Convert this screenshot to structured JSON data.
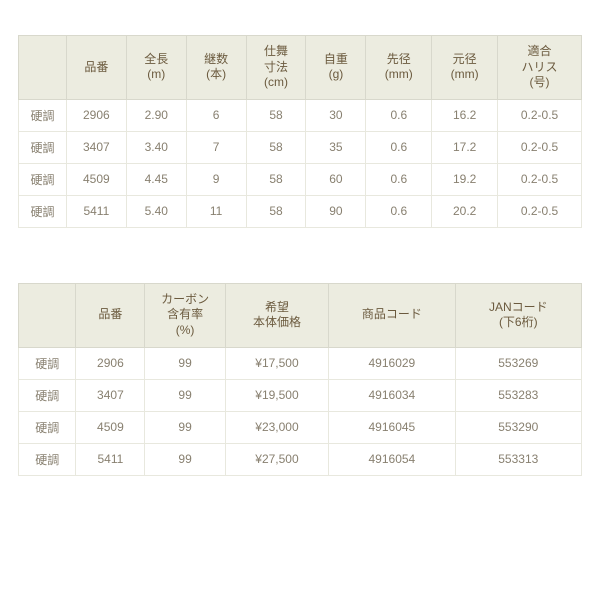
{
  "colors": {
    "header_bg": "#ecece0",
    "header_text": "#6b5a3e",
    "cell_text": "#888070",
    "border": "#d8d8cc",
    "row_border": "#e8e8de",
    "page_bg": "#ffffff"
  },
  "typography": {
    "font_size_pt": 12,
    "header_line_height": 1.3
  },
  "table1": {
    "columns": [
      "",
      "品番",
      "全長\n(m)",
      "継数\n(本)",
      "仕舞\n寸法\n(cm)",
      "自重\n(g)",
      "先径\n(mm)",
      "元径\n(mm)",
      "適合\nハリス\n(号)"
    ],
    "rows": [
      [
        "硬調",
        "2906",
        "2.90",
        "6",
        "58",
        "30",
        "0.6",
        "16.2",
        "0.2-0.5"
      ],
      [
        "硬調",
        "3407",
        "3.40",
        "7",
        "58",
        "35",
        "0.6",
        "17.2",
        "0.2-0.5"
      ],
      [
        "硬調",
        "4509",
        "4.45",
        "9",
        "58",
        "60",
        "0.6",
        "19.2",
        "0.2-0.5"
      ],
      [
        "硬調",
        "5411",
        "5.40",
        "11",
        "58",
        "90",
        "0.6",
        "20.2",
        "0.2-0.5"
      ]
    ]
  },
  "table2": {
    "columns": [
      "",
      "品番",
      "カーボン\n含有率\n(%)",
      "希望\n本体価格",
      "商品コード",
      "JANコード\n(下6桁)"
    ],
    "rows": [
      [
        "硬調",
        "2906",
        "99",
        "¥17,500",
        "4916029",
        "553269"
      ],
      [
        "硬調",
        "3407",
        "99",
        "¥19,500",
        "4916034",
        "553283"
      ],
      [
        "硬調",
        "4509",
        "99",
        "¥23,000",
        "4916045",
        "553290"
      ],
      [
        "硬調",
        "5411",
        "99",
        "¥27,500",
        "4916054",
        "553313"
      ]
    ]
  }
}
